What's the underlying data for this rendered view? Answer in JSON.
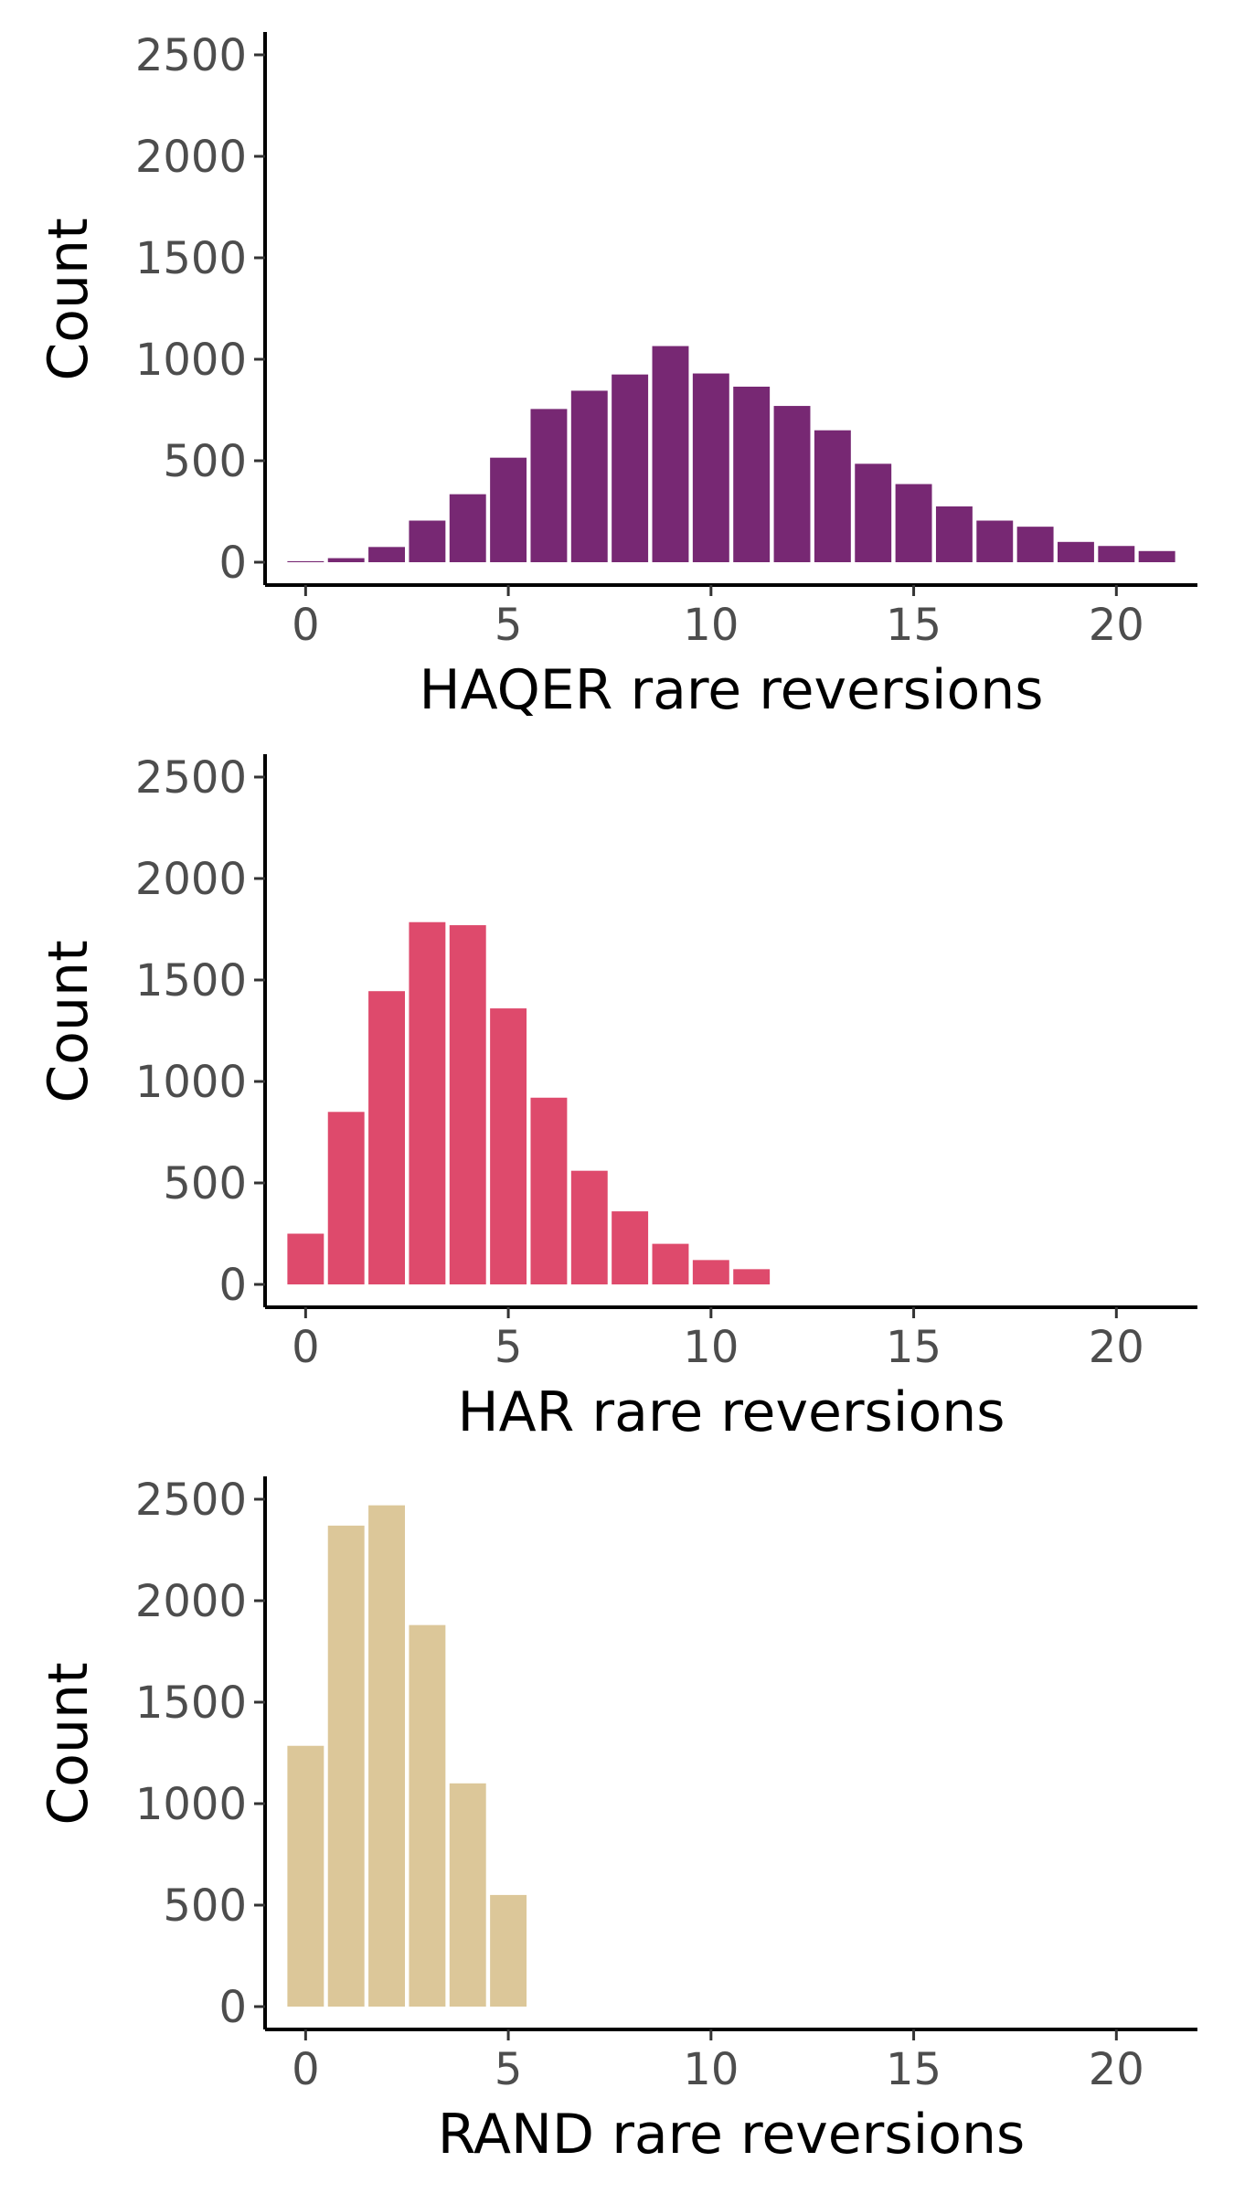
{
  "chart_data": [
    {
      "type": "bar",
      "xlabel": "HAQER rare reversions",
      "ylabel": "Count",
      "color": "#772873",
      "x": [
        0,
        1,
        2,
        3,
        4,
        5,
        6,
        7,
        8,
        9,
        10,
        11,
        12,
        13,
        14,
        15,
        16,
        17,
        18,
        19,
        20,
        21
      ],
      "values": [
        5,
        20,
        75,
        205,
        335,
        515,
        755,
        845,
        925,
        1065,
        930,
        865,
        770,
        650,
        485,
        385,
        275,
        205,
        175,
        100,
        80,
        55
      ],
      "xlim": [
        -1,
        22
      ],
      "ylim": [
        0,
        2500
      ],
      "xticks": [
        "0",
        "5",
        "10",
        "15",
        "20"
      ],
      "yticks": [
        "0",
        "500",
        "1000",
        "1500",
        "2000",
        "2500"
      ],
      "grid": false
    },
    {
      "type": "bar",
      "xlabel": "HAR rare reversions",
      "ylabel": "Count",
      "color": "#de4a6c",
      "x": [
        0,
        1,
        2,
        3,
        4,
        5,
        6,
        7,
        8,
        9,
        10,
        11
      ],
      "values": [
        250,
        850,
        1445,
        1785,
        1770,
        1360,
        920,
        560,
        360,
        200,
        120,
        75
      ],
      "xlim": [
        -1,
        22
      ],
      "ylim": [
        0,
        2500
      ],
      "xticks": [
        "0",
        "5",
        "10",
        "15",
        "20"
      ],
      "yticks": [
        "0",
        "500",
        "1000",
        "1500",
        "2000",
        "2500"
      ],
      "grid": false
    },
    {
      "type": "bar",
      "xlabel": "RAND rare reversions",
      "ylabel": "Count",
      "color": "#dcc799",
      "x": [
        0,
        1,
        2,
        3,
        4,
        5
      ],
      "values": [
        1285,
        2370,
        2470,
        1880,
        1100,
        550
      ],
      "xlim": [
        -1,
        22
      ],
      "ylim": [
        0,
        2500
      ],
      "xticks": [
        "0",
        "5",
        "10",
        "15",
        "20"
      ],
      "yticks": [
        "0",
        "500",
        "1000",
        "1500",
        "2000",
        "2500"
      ],
      "grid": false
    }
  ]
}
